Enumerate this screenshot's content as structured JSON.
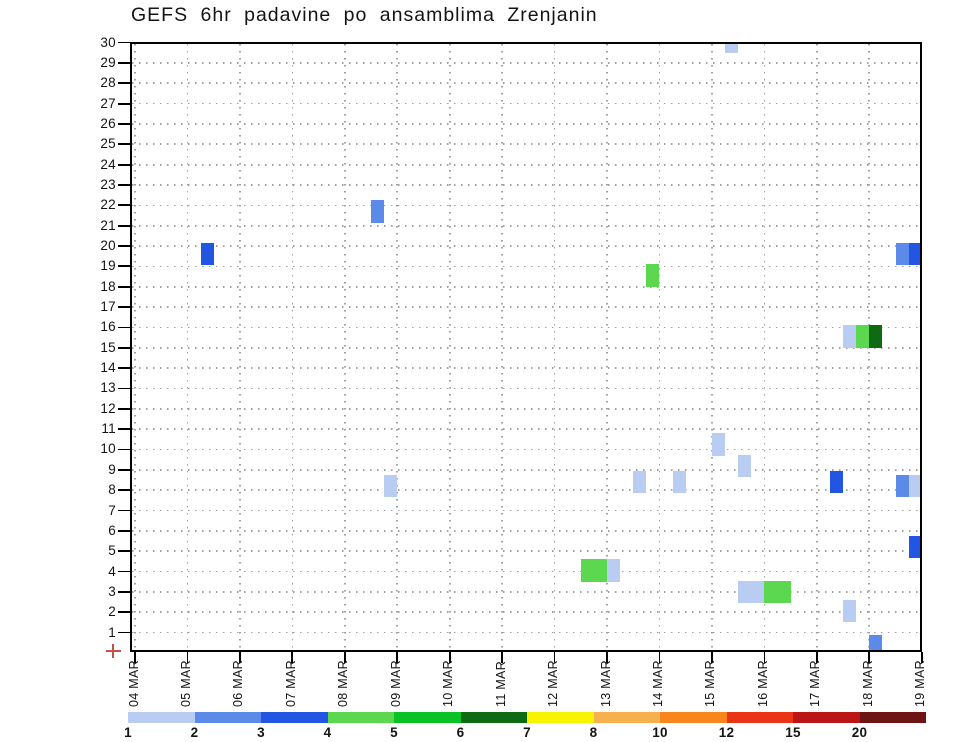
{
  "title": "GEFS 6hr padavine po ansamblima Zrenjanin",
  "chart_data": {
    "type": "heatmap",
    "title": "GEFS 6hr padavine po ansamblima Zrenjanin",
    "xlabel": "",
    "ylabel": "",
    "ylim": [
      0,
      30
    ],
    "grid": true,
    "x_axis": {
      "tick_labels": [
        "04 MAR",
        "05 MAR",
        "06 MAR",
        "07 MAR",
        "08 MAR",
        "09 MAR",
        "10 MAR",
        "11 MAR",
        "12 MAR",
        "13 MAR",
        "14 MAR",
        "15 MAR",
        "16 MAR",
        "17 MAR",
        "18 MAR",
        "19 MAR"
      ],
      "slots_per_day": 4
    },
    "y_axis": {
      "tick_labels": [
        "30",
        "29",
        "28",
        "27",
        "26",
        "25",
        "24",
        "23",
        "22",
        "21",
        "20",
        "19",
        "18",
        "17",
        "16",
        "15",
        "14",
        "13",
        "12",
        "11",
        "10",
        "9",
        "8",
        "7",
        "6",
        "5",
        "4",
        "3",
        "2",
        "1"
      ]
    },
    "legend": {
      "position": "bottom",
      "boundary_labels": [
        "1",
        "2",
        "3",
        "4",
        "5",
        "6",
        "7",
        "8",
        "10",
        "12",
        "15",
        "20"
      ],
      "classes": [
        {
          "range": "1-2",
          "color": "#b9cdf2"
        },
        {
          "range": "2-3",
          "color": "#5c8ae8"
        },
        {
          "range": "3-4",
          "color": "#2255e2"
        },
        {
          "range": "4-5",
          "color": "#5bd84f"
        },
        {
          "range": "5-6",
          "color": "#0ac225"
        },
        {
          "range": "6-7",
          "color": "#0e6b14"
        },
        {
          "range": "7-8",
          "color": "#f8f400"
        },
        {
          "range": "8-10",
          "color": "#f6b04e"
        },
        {
          "range": "10-12",
          "color": "#f8861c"
        },
        {
          "range": "12-15",
          "color": "#e93418"
        },
        {
          "range": "15-20",
          "color": "#bb1516"
        },
        {
          "range": "20+",
          "color": "#6f1415"
        }
      ]
    },
    "marks": [
      {
        "day": "05 MAR",
        "slot": 1,
        "y": 19.6,
        "cls": "3-4"
      },
      {
        "day": "08 MAR",
        "slot": 2,
        "y": 21.7,
        "cls": "2-3"
      },
      {
        "day": "08 MAR",
        "slot": 3,
        "y": 8.2,
        "cls": "1-2"
      },
      {
        "day": "12 MAR",
        "slot": 2,
        "y": 4.05,
        "cls": "4-5"
      },
      {
        "day": "12 MAR",
        "slot": 3,
        "y": 4.05,
        "cls": "4-5"
      },
      {
        "day": "13 MAR",
        "slot": 0,
        "y": 4.05,
        "cls": "1-2"
      },
      {
        "day": "13 MAR",
        "slot": 2,
        "y": 8.4,
        "cls": "1-2"
      },
      {
        "day": "13 MAR",
        "slot": 3,
        "y": 18.55,
        "cls": "4-5"
      },
      {
        "day": "14 MAR",
        "slot": 1,
        "y": 8.4,
        "cls": "1-2"
      },
      {
        "day": "15 MAR",
        "slot": 0,
        "y": 10.25,
        "cls": "1-2"
      },
      {
        "day": "15 MAR",
        "slot": 1,
        "y": 29.75,
        "h": 0.5,
        "cls": "1-2"
      },
      {
        "day": "15 MAR",
        "slot": 2,
        "y": 9.2,
        "cls": "1-2"
      },
      {
        "day": "15 MAR",
        "slot": 2,
        "y": 3.0,
        "cls": "1-2"
      },
      {
        "day": "15 MAR",
        "slot": 3,
        "y": 3.0,
        "cls": "1-2"
      },
      {
        "day": "16 MAR",
        "slot": 0,
        "y": 3.0,
        "cls": "4-5"
      },
      {
        "day": "16 MAR",
        "slot": 1,
        "y": 3.0,
        "cls": "4-5"
      },
      {
        "day": "17 MAR",
        "slot": 1,
        "y": 8.4,
        "cls": "3-4"
      },
      {
        "day": "17 MAR",
        "slot": 2,
        "y": 15.55,
        "cls": "1-2"
      },
      {
        "day": "17 MAR",
        "slot": 2,
        "y": 2.05,
        "cls": "1-2"
      },
      {
        "day": "17 MAR",
        "slot": 3,
        "y": 15.55,
        "cls": "4-5"
      },
      {
        "day": "18 MAR",
        "slot": 0,
        "y": 15.55,
        "cls": "6-7"
      },
      {
        "day": "18 MAR",
        "slot": 0,
        "y": 0.5,
        "h": 0.75,
        "cls": "2-3"
      },
      {
        "day": "18 MAR",
        "slot": 2,
        "y": 19.6,
        "cls": "2-3"
      },
      {
        "day": "18 MAR",
        "slot": 3,
        "y": 19.6,
        "cls": "3-4"
      },
      {
        "day": "18 MAR",
        "slot": 2,
        "y": 8.2,
        "cls": "2-3"
      },
      {
        "day": "18 MAR",
        "slot": 3,
        "y": 8.2,
        "cls": "1-2"
      },
      {
        "day": "18 MAR",
        "slot": 3,
        "y": 5.2,
        "cls": "3-4"
      }
    ]
  }
}
